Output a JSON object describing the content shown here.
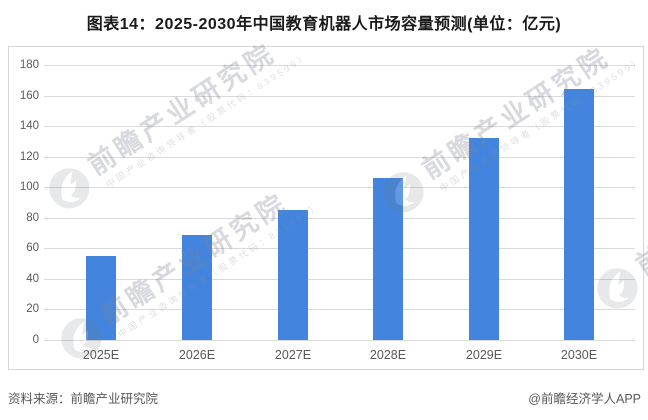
{
  "title": "图表14：2025-2030年中国教育机器人市场容量预测(单位：亿元)",
  "footer": {
    "source": "资料来源：前瞻产业研究院",
    "credit": "@前瞻经济学人APP"
  },
  "watermark": {
    "text": "前瞻产业研究院",
    "subtext": "中国产业咨询领导者（股票代码：839599）"
  },
  "chart_data": {
    "type": "bar",
    "categories": [
      "2025E",
      "2026E",
      "2027E",
      "2028E",
      "2029E",
      "2030E"
    ],
    "values": [
      55,
      69,
      85,
      106,
      132,
      164
    ],
    "title": "图表14：2025-2030年中国教育机器人市场容量预测(单位：亿元)",
    "xlabel": "",
    "ylabel": "",
    "unit": "亿元",
    "ylim": [
      0,
      180
    ],
    "ytick_step": 20,
    "bar_color": "#4385de",
    "grid": true,
    "gridline_color": "#d9d9d9",
    "legend": "none"
  }
}
